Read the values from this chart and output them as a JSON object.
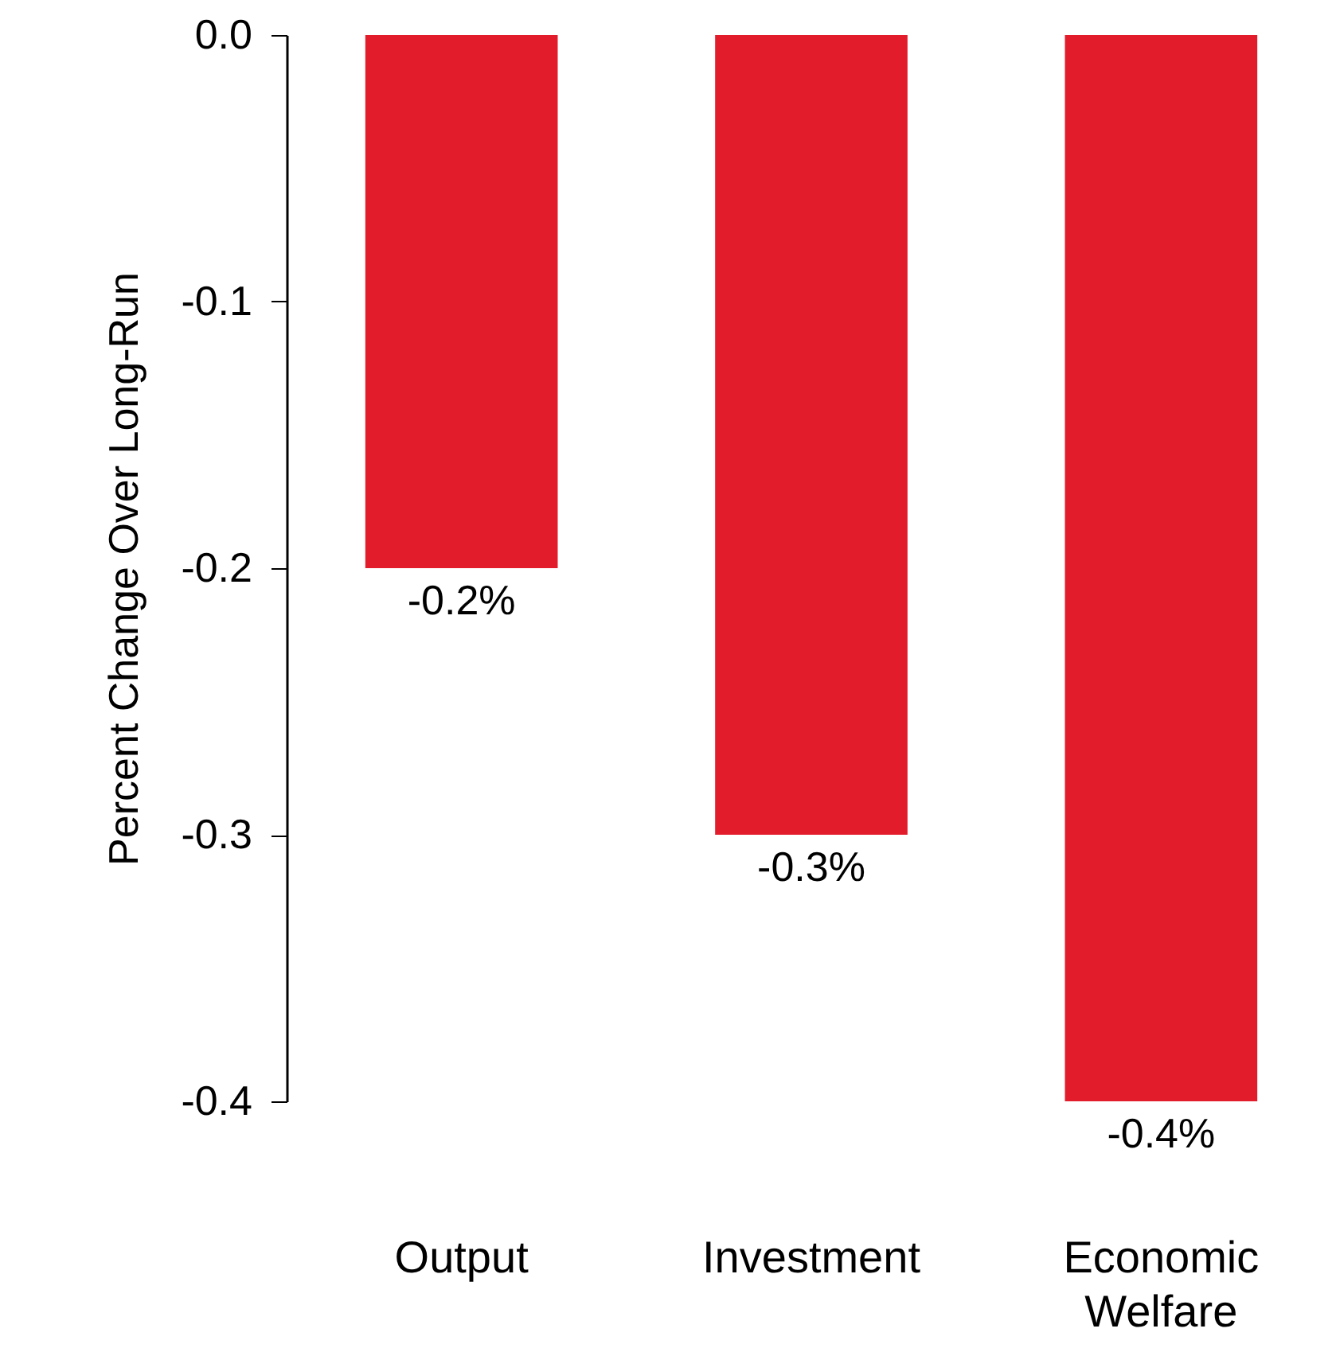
{
  "chart_data": {
    "type": "bar",
    "ylabel": "Percent Change Over Long-Run",
    "categories": [
      "Output",
      "Investment",
      "Economic Welfare"
    ],
    "values": [
      -0.2,
      -0.3,
      -0.4
    ],
    "value_labels": [
      "-0.2%",
      "-0.3%",
      "-0.4%"
    ],
    "color": "#e21c2a",
    "ylim": [
      -0.4,
      0
    ],
    "yticks": [
      -0.4,
      -0.3,
      -0.2,
      -0.1,
      {
        "value": 0,
        "label": "0.0"
      }
    ],
    "grid": false
  }
}
